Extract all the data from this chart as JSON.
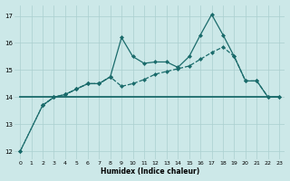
{
  "bg_color": "#cce8e8",
  "grid_color": "#aacfcf",
  "line_color": "#1a6b6b",
  "xlabel": "Humidex (Indice chaleur)",
  "xlim_min": -0.5,
  "xlim_max": 23.5,
  "ylim_min": 11.7,
  "ylim_max": 17.4,
  "yticks": [
    12,
    13,
    14,
    15,
    16,
    17
  ],
  "xticks": [
    0,
    1,
    2,
    3,
    4,
    5,
    6,
    7,
    8,
    9,
    10,
    11,
    12,
    13,
    14,
    15,
    16,
    17,
    18,
    19,
    20,
    21,
    22,
    23
  ],
  "flat_line_x": [
    0,
    23
  ],
  "flat_line_y": [
    14.0,
    14.0
  ],
  "dotted_line_x": [
    0,
    2,
    3,
    4,
    5,
    6,
    7,
    8
  ],
  "dotted_line_y": [
    12.0,
    13.7,
    14.0,
    14.1,
    14.3,
    14.5,
    14.5,
    14.75
  ],
  "steep_line_x": [
    0,
    2,
    3,
    4,
    5,
    6,
    7,
    8,
    9,
    10,
    11,
    12,
    13,
    14,
    15,
    16,
    17,
    18,
    19,
    20,
    21,
    22,
    23
  ],
  "steep_line_y": [
    12.0,
    13.7,
    14.0,
    14.1,
    14.3,
    14.5,
    14.5,
    14.75,
    16.2,
    15.5,
    15.25,
    15.3,
    15.3,
    15.1,
    15.5,
    16.3,
    17.05,
    16.3,
    15.5,
    14.6,
    14.6,
    14.0,
    14.0
  ],
  "grad_line_x": [
    2,
    3,
    4,
    5,
    6,
    7,
    8,
    9,
    10,
    11,
    12,
    13,
    14,
    15,
    16,
    17,
    18,
    19,
    20,
    21,
    22,
    23
  ],
  "grad_line_y": [
    13.7,
    14.0,
    14.1,
    14.3,
    14.5,
    14.5,
    14.75,
    14.4,
    14.5,
    14.65,
    14.85,
    14.95,
    15.05,
    15.15,
    15.4,
    15.65,
    15.85,
    15.5,
    14.6,
    14.6,
    14.0,
    14.0
  ]
}
